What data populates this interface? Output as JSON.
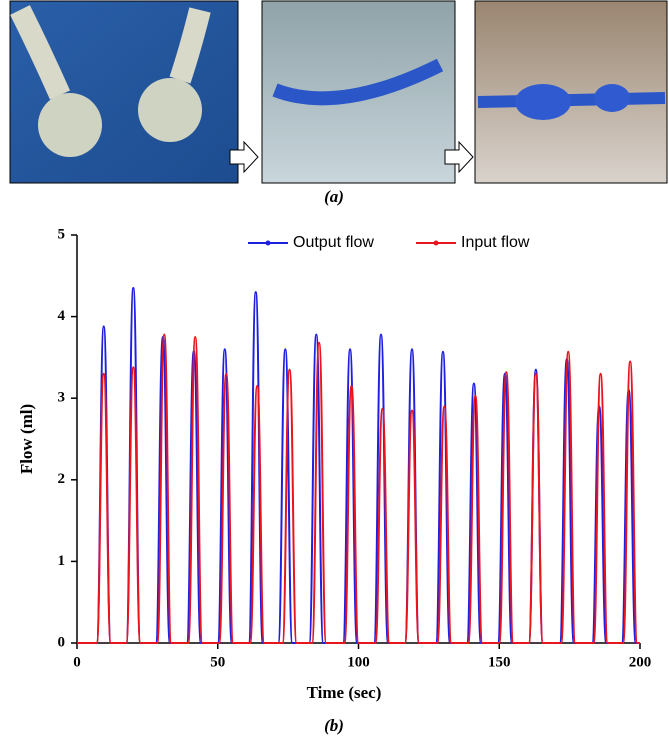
{
  "figure": {
    "panel_a": "(a)",
    "panel_b": "(b)"
  },
  "chart_data": {
    "type": "line",
    "xlabel": "Time (sec)",
    "ylabel": "Flow (ml)",
    "xlim": [
      0,
      200
    ],
    "xticks": [
      0,
      50,
      100,
      150,
      200
    ],
    "ylim": [
      0,
      5
    ],
    "yticks": [
      0,
      1,
      2,
      3,
      4,
      5
    ],
    "legend": "top",
    "series": [
      {
        "name": "Output flow",
        "color": "#1f1fe0",
        "x": [
          0,
          7,
          9.5,
          12,
          17.5,
          20,
          22.5,
          28,
          30.5,
          33,
          39,
          41.5,
          44,
          50,
          52.5,
          55,
          61,
          63.5,
          66,
          71.5,
          74,
          76.5,
          82.5,
          85,
          87.5,
          94.5,
          97,
          99.5,
          105.5,
          108,
          110.5,
          116.5,
          119,
          121.5,
          127.5,
          130,
          132.5,
          138.5,
          141,
          143.5,
          149.5,
          152,
          154.5,
          160.5,
          163,
          165.5,
          171.5,
          174,
          176.5,
          183,
          185.5,
          188,
          193.5,
          196,
          198.5,
          200
        ],
        "values": [
          0,
          0,
          3.88,
          0,
          0,
          4.35,
          0,
          0,
          3.75,
          0,
          0,
          3.58,
          0,
          0,
          3.6,
          0,
          0,
          4.3,
          0,
          0,
          3.6,
          0,
          0,
          3.78,
          0,
          0,
          3.6,
          0,
          0,
          3.78,
          0,
          0,
          3.6,
          0,
          0,
          3.57,
          0,
          0,
          3.18,
          0,
          0,
          3.3,
          0,
          0,
          3.35,
          0,
          0,
          3.48,
          0,
          0,
          2.9,
          0,
          0,
          3.1,
          0,
          0
        ]
      },
      {
        "name": "Input flow",
        "color": "#e8141e",
        "x": [
          0,
          7,
          9.5,
          12,
          17.5,
          20,
          22.5,
          28.5,
          31,
          33.5,
          39.5,
          42,
          44.5,
          50.5,
          53,
          55.5,
          61.5,
          64,
          66.5,
          73,
          75.5,
          78,
          83.5,
          86,
          88.5,
          95,
          97.5,
          100,
          106,
          108.5,
          111,
          116.5,
          119,
          121.5,
          128,
          130.5,
          133,
          139,
          141.5,
          144,
          150,
          152.5,
          155,
          160.5,
          163,
          165.5,
          172,
          174.5,
          177,
          183.5,
          186,
          188.5,
          194,
          196.5,
          199,
          200
        ],
        "values": [
          0,
          0,
          3.3,
          0,
          0,
          3.38,
          0,
          0,
          3.78,
          0,
          0,
          3.75,
          0,
          0,
          3.3,
          0,
          0,
          3.15,
          0,
          0,
          3.35,
          0,
          0,
          3.68,
          0,
          0,
          3.15,
          0,
          0,
          2.87,
          0,
          0,
          2.85,
          0,
          0,
          2.9,
          0,
          0,
          3.03,
          0,
          0,
          3.32,
          0,
          0,
          3.3,
          0,
          0,
          3.57,
          0,
          0,
          3.3,
          0,
          0,
          3.45,
          0,
          0
        ]
      }
    ]
  }
}
